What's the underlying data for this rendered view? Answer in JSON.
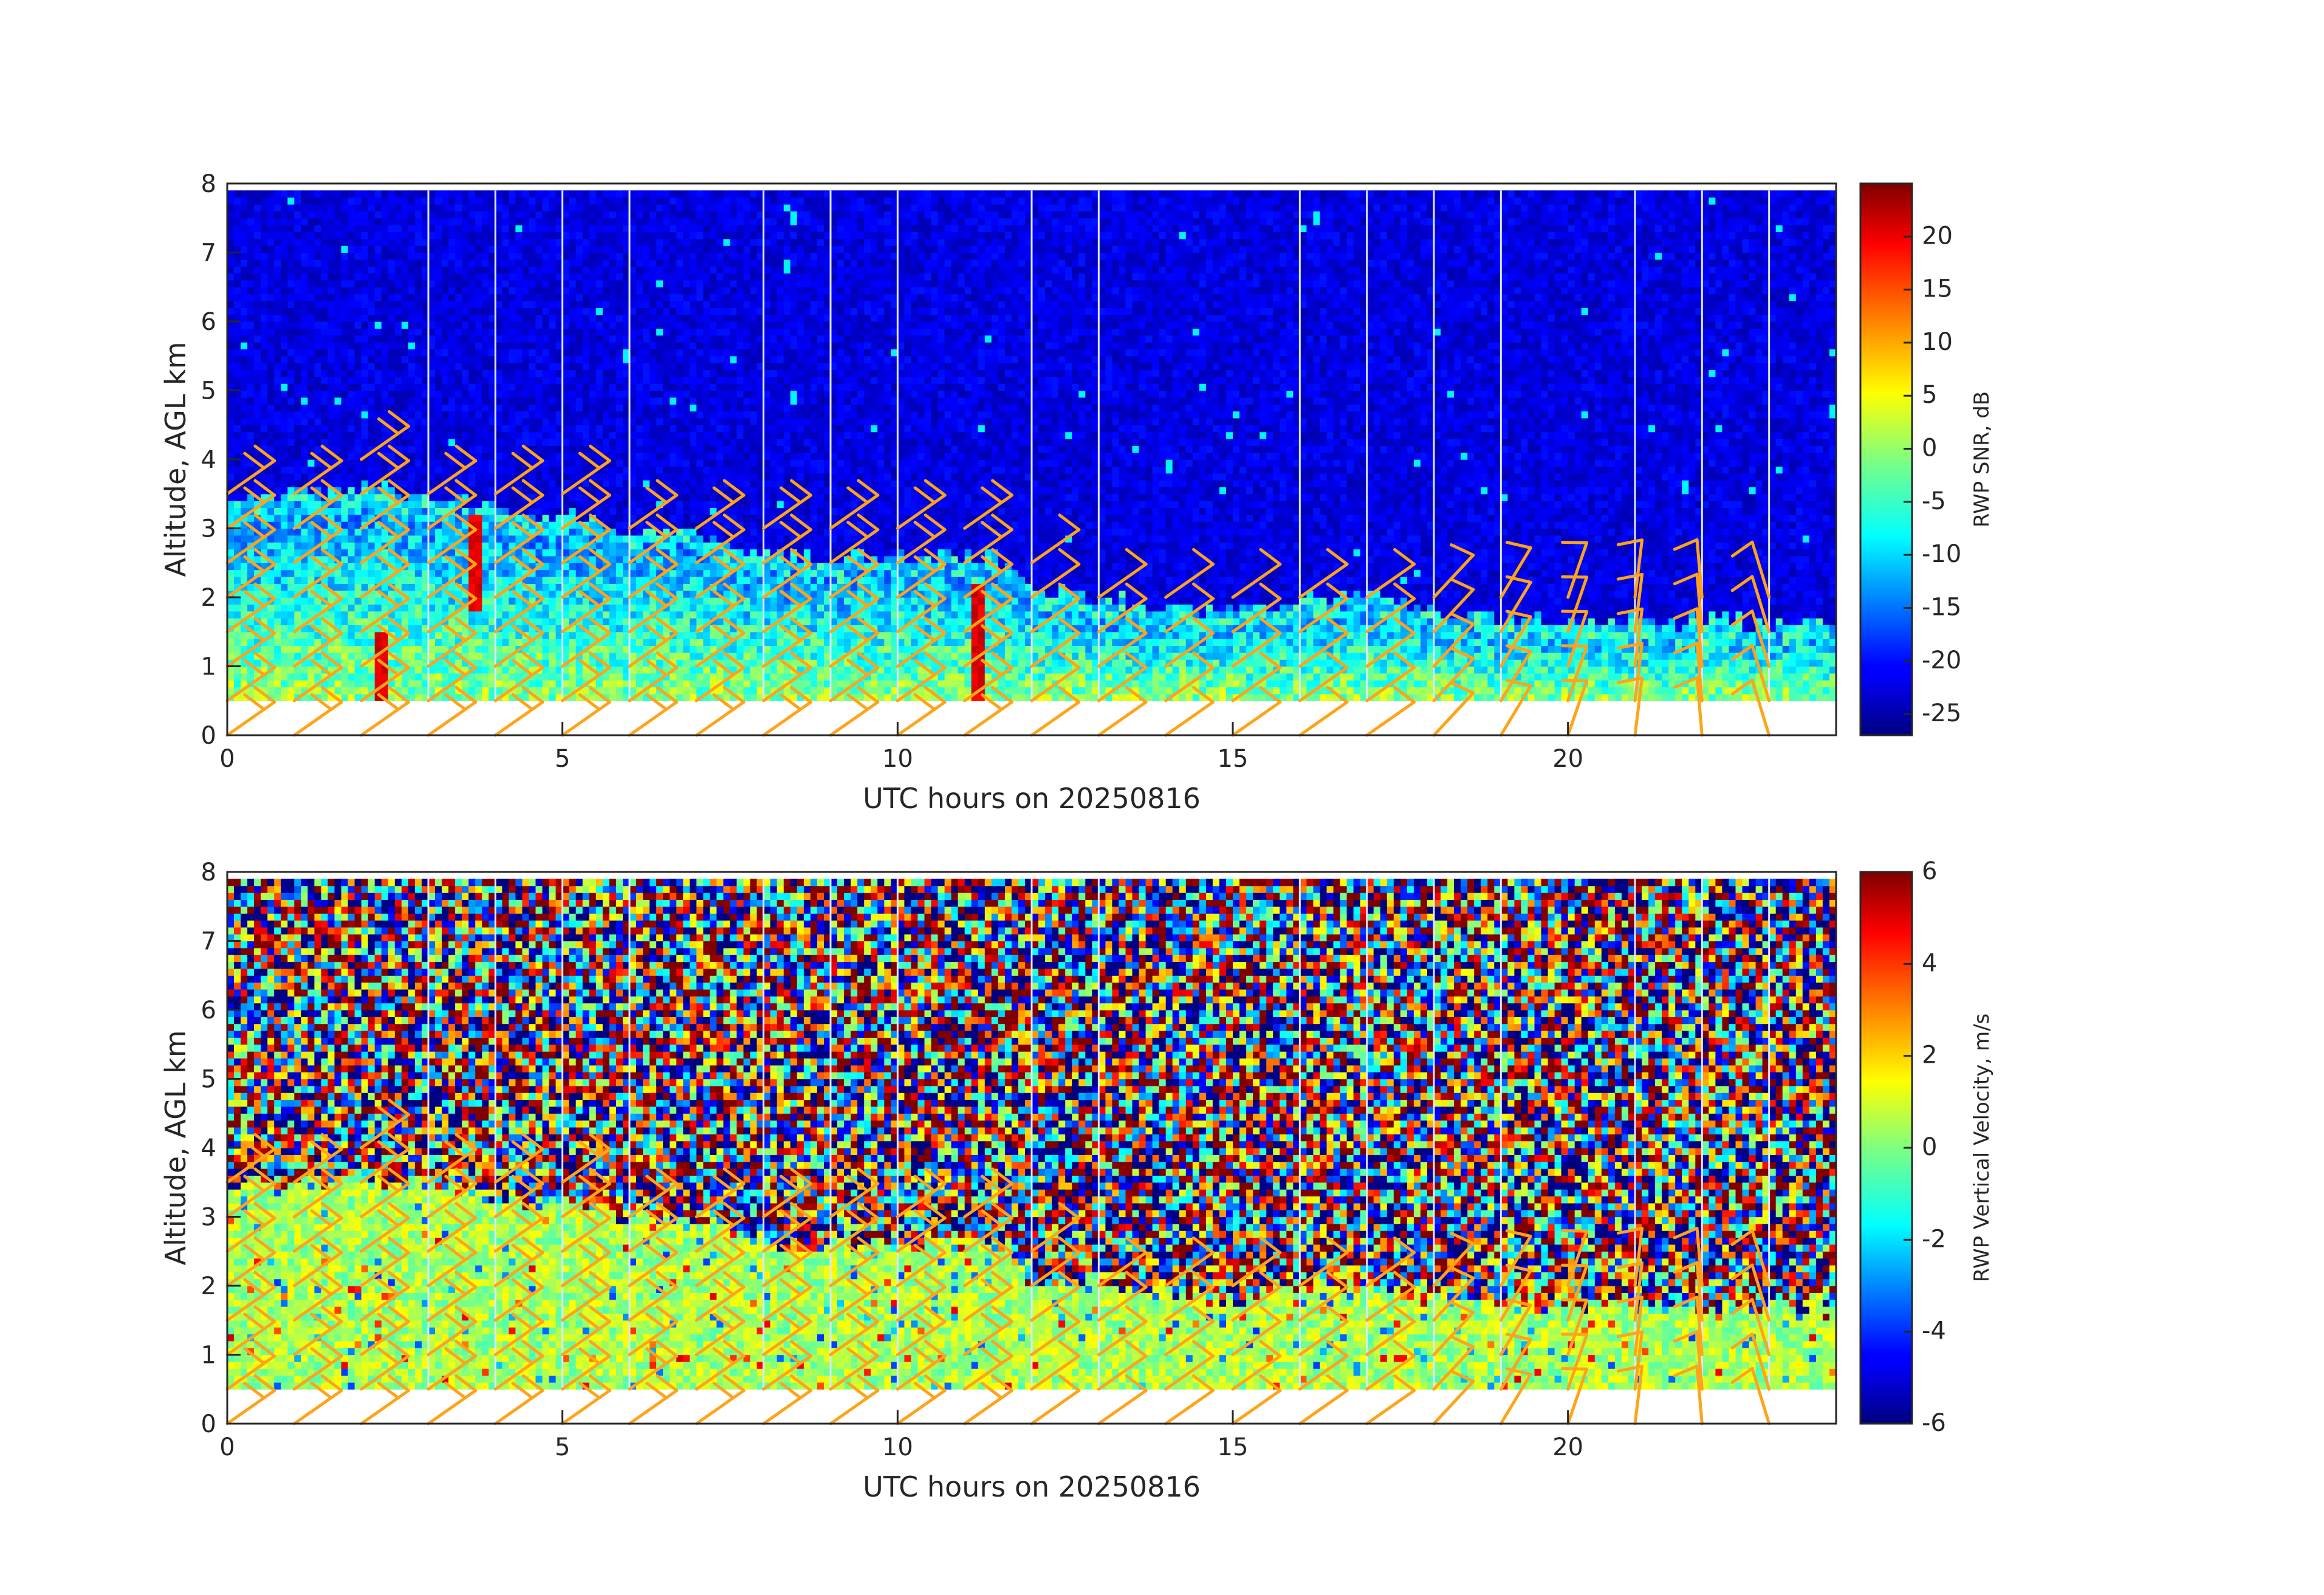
{
  "chart_data": [
    {
      "type": "heatmap",
      "panel": "top",
      "xlabel": "UTC hours on 20250816",
      "ylabel": "Altitude, AGL km",
      "xlim": [
        0,
        24
      ],
      "ylim": [
        0,
        8
      ],
      "x_ticks": [
        0,
        5,
        10,
        15,
        20
      ],
      "y_ticks": [
        0,
        1,
        2,
        3,
        4,
        5,
        6,
        7,
        8
      ],
      "data_altitude_range_km": [
        0.5,
        7.9
      ],
      "colormap": "jet",
      "colorbar": {
        "label": "RWP SNR, dB",
        "clim": [
          -27,
          25
        ],
        "ticks": [
          -25,
          -20,
          -15,
          -10,
          -5,
          0,
          5,
          10,
          15,
          20
        ]
      },
      "boundary_layer_top_km": [
        [
          0,
          3.4
        ],
        [
          2,
          3.6
        ],
        [
          3,
          3.5
        ],
        [
          4,
          3.3
        ],
        [
          5,
          3.2
        ],
        [
          6,
          3.0
        ],
        [
          7,
          2.9
        ],
        [
          8,
          2.6
        ],
        [
          9,
          2.6
        ],
        [
          10,
          2.6
        ],
        [
          11.5,
          2.6
        ],
        [
          12,
          2.1
        ],
        [
          13,
          2.0
        ],
        [
          14,
          1.9
        ],
        [
          15,
          1.8
        ],
        [
          16,
          2.0
        ],
        [
          17,
          2.0
        ],
        [
          18,
          1.8
        ],
        [
          19,
          1.75
        ],
        [
          20,
          1.7
        ],
        [
          22,
          1.65
        ],
        [
          24,
          1.65
        ]
      ],
      "strong_echo_columns": [
        {
          "hour": 2.3,
          "alt_range_km": [
            0.5,
            1.5
          ]
        },
        {
          "hour": 3.7,
          "alt_range_km": [
            1.8,
            3.2
          ]
        },
        {
          "hour": 11.2,
          "alt_range_km": [
            0.5,
            2.2
          ]
        }
      ],
      "data_gap_hours": [
        3,
        4,
        5,
        6,
        8,
        9,
        10,
        12,
        13,
        16,
        17,
        18,
        19,
        21,
        22,
        23
      ]
    },
    {
      "type": "heatmap",
      "panel": "bottom",
      "xlabel": "UTC hours on 20250816",
      "ylabel": "Altitude, AGL km",
      "xlim": [
        0,
        24
      ],
      "ylim": [
        0,
        8
      ],
      "x_ticks": [
        0,
        5,
        10,
        15,
        20
      ],
      "y_ticks": [
        0,
        1,
        2,
        3,
        4,
        5,
        6,
        7,
        8
      ],
      "data_altitude_range_km": [
        0.5,
        7.9
      ],
      "colormap": "jet",
      "colorbar": {
        "label": "RWP Vertical Velocity, m/s",
        "clim": [
          -6,
          6
        ],
        "ticks": [
          -6,
          -4,
          -2,
          0,
          2,
          4,
          6
        ]
      },
      "boundary_layer_top_km": [
        [
          0,
          3.4
        ],
        [
          2,
          3.6
        ],
        [
          3,
          3.5
        ],
        [
          4,
          3.3
        ],
        [
          5,
          3.2
        ],
        [
          6,
          3.0
        ],
        [
          7,
          2.9
        ],
        [
          8,
          2.6
        ],
        [
          9,
          2.6
        ],
        [
          10,
          2.6
        ],
        [
          11.5,
          2.6
        ],
        [
          12,
          2.1
        ],
        [
          13,
          2.0
        ],
        [
          14,
          1.9
        ],
        [
          15,
          1.8
        ],
        [
          16,
          2.0
        ],
        [
          17,
          2.0
        ],
        [
          18,
          1.8
        ],
        [
          19,
          1.75
        ],
        [
          20,
          1.7
        ],
        [
          22,
          1.65
        ],
        [
          24,
          1.65
        ]
      ],
      "typical_velocity_in_layer_ms": 0.5,
      "data_gap_hours": [
        3,
        4,
        5,
        6,
        8,
        9,
        10,
        12,
        13,
        16,
        17,
        18,
        19,
        21,
        22,
        23
      ]
    }
  ],
  "wind_barbs": {
    "color": "#ffa31a",
    "hours": [
      0,
      1,
      2,
      3,
      4,
      5,
      6,
      7,
      8,
      9,
      10,
      11,
      12,
      13,
      14,
      15,
      16,
      17,
      18,
      19,
      20,
      21,
      22,
      23
    ],
    "altitudes_km": [
      0,
      0.5,
      1,
      1.5,
      2,
      2.5,
      3,
      3.5,
      4
    ]
  }
}
